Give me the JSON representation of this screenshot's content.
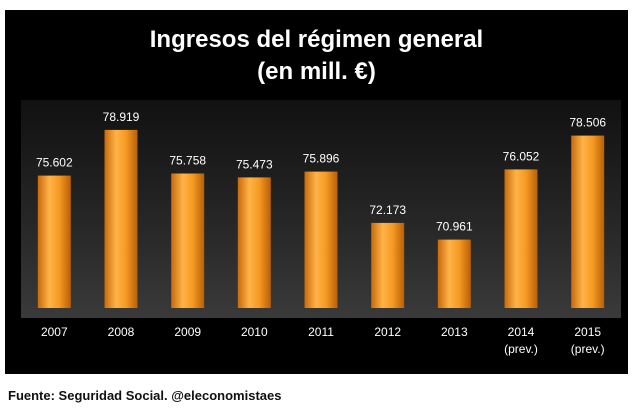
{
  "chart_data": {
    "type": "bar",
    "title_line1": "Ingresos del régimen general",
    "title_line2": "(en mill. €)",
    "categories": [
      "2007",
      "2008",
      "2009",
      "2010",
      "2011",
      "2012",
      "2013",
      "2014",
      "2015"
    ],
    "category_sublabels": [
      "",
      "",
      "",
      "",
      "",
      "",
      "",
      "(prev.)",
      "(prev.)"
    ],
    "values": [
      75602,
      78919,
      75758,
      75473,
      75896,
      72173,
      70961,
      76052,
      78506
    ],
    "value_labels": [
      "75.602",
      "78.919",
      "75.758",
      "75.473",
      "75.896",
      "72.173",
      "70.961",
      "76.052",
      "78.506"
    ],
    "ylim": [
      66000,
      80000
    ],
    "grid": false,
    "legend": "none",
    "bar_color": "#f39a1e",
    "xlabel": "",
    "ylabel": ""
  },
  "source": "Fuente: Seguridad Social. @eleconomistaes"
}
